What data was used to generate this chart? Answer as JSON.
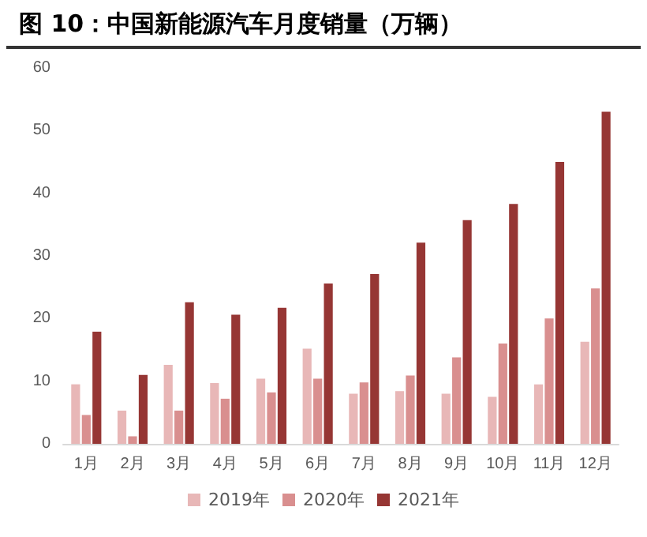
{
  "chart_data": {
    "type": "bar",
    "title": "图 10：中国新能源汽车月度销量（万辆）",
    "categories": [
      "1月",
      "2月",
      "3月",
      "4月",
      "5月",
      "6月",
      "7月",
      "8月",
      "9月",
      "10月",
      "11月",
      "12月"
    ],
    "series": [
      {
        "name": "2019年",
        "color": "#e8b7b7",
        "values": [
          9.5,
          5.3,
          12.6,
          9.7,
          10.4,
          15.2,
          8.0,
          8.4,
          8.0,
          7.5,
          9.5,
          16.3
        ]
      },
      {
        "name": "2020年",
        "color": "#d98f8f",
        "values": [
          4.6,
          1.2,
          5.3,
          7.2,
          8.2,
          10.4,
          9.8,
          10.9,
          13.8,
          16.0,
          20.0,
          24.8
        ]
      },
      {
        "name": "2021年",
        "color": "#963634",
        "values": [
          17.9,
          11.0,
          22.6,
          20.6,
          21.7,
          25.6,
          27.1,
          32.1,
          35.7,
          38.3,
          45.0,
          53.0
        ]
      }
    ],
    "ylim": [
      0,
      60
    ],
    "yticks": [
      0,
      10,
      20,
      30,
      40,
      50,
      60
    ],
    "grid": false,
    "legend": "bottom"
  }
}
